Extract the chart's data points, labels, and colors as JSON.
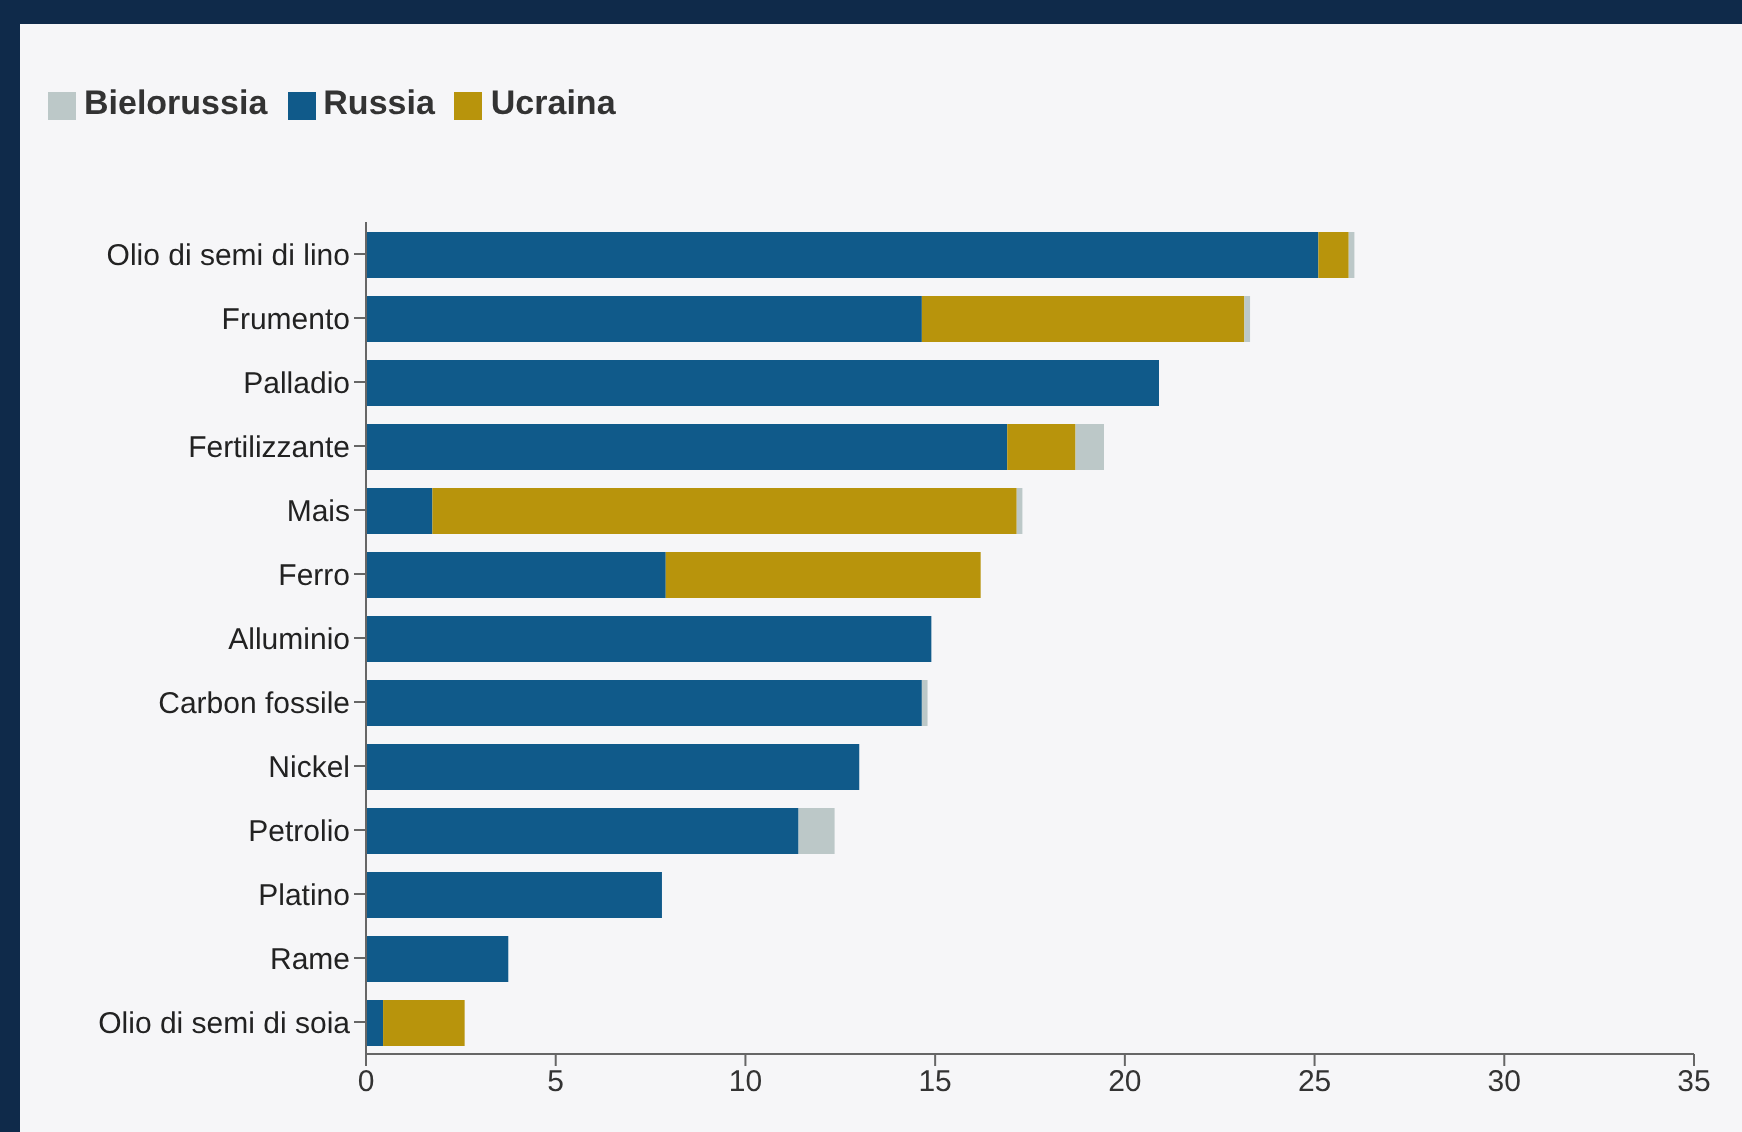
{
  "chart_data": {
    "type": "bar",
    "orientation": "horizontal",
    "stacked": true,
    "categories": [
      "Olio di semi di lino",
      "Frumento",
      "Palladio",
      "Fertilizzante",
      "Mais",
      "Ferro",
      "Alluminio",
      "Carbon fossile",
      "Nickel",
      "Petrolio",
      "Platino",
      "Rame",
      "Olio di semi di soia"
    ],
    "series": [
      {
        "name": "Russia",
        "color": "#105a8a",
        "values": [
          25.1,
          14.65,
          20.9,
          16.9,
          1.75,
          7.9,
          14.9,
          14.65,
          13,
          11.4,
          7.8,
          3.75,
          0.45
        ]
      },
      {
        "name": "Ucraina",
        "color": "#b8940c",
        "values": [
          0.8,
          8.5,
          null,
          1.8,
          15.4,
          8.3,
          null,
          null,
          null,
          null,
          null,
          null,
          2.15
        ]
      },
      {
        "name": "Bielorussia",
        "color": "#bcc8c8",
        "values": [
          0.15,
          0.15,
          null,
          0.75,
          0.15,
          null,
          null,
          0.15,
          null,
          0.95,
          null,
          null,
          null
        ]
      }
    ],
    "xlim": [
      0,
      35
    ],
    "xticks": [
      0,
      5,
      10,
      15,
      20,
      25,
      30,
      35
    ],
    "grid": false,
    "legend": "top left"
  }
}
